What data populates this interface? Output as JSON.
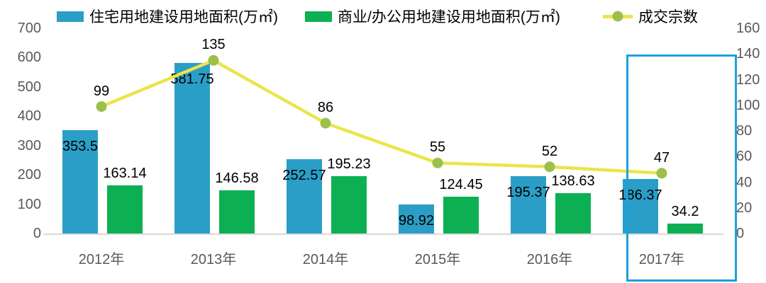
{
  "chart_data": {
    "type": "bar",
    "subtype": "combo-bar-line",
    "title": "",
    "categories": [
      "2012年",
      "2013年",
      "2014年",
      "2015年",
      "2016年",
      "2017年"
    ],
    "series": [
      {
        "name": "住宅用地建设用地面积(万㎡)",
        "type": "bar",
        "axis": "left",
        "color": "#2B9EC7",
        "values": [
          353.5,
          581.75,
          252.57,
          98.92,
          195.37,
          186.37
        ],
        "labels": [
          "353.5",
          "581.75",
          "252.57",
          "98.92",
          "195.37",
          "186.37"
        ]
      },
      {
        "name": "商业/办公用地建设用地面积(万㎡)",
        "type": "bar",
        "axis": "left",
        "color": "#0CB052",
        "values": [
          163.14,
          146.58,
          195.23,
          124.45,
          138.63,
          34.2
        ],
        "labels": [
          "163.14",
          "146.58",
          "195.23",
          "124.45",
          "138.63",
          "34.2"
        ]
      },
      {
        "name": "成交宗数",
        "type": "line",
        "axis": "right",
        "color": "#EAE54A",
        "marker_color": "#9DBF4B",
        "values": [
          99,
          135,
          86,
          55,
          52,
          47
        ],
        "labels": [
          "99",
          "135",
          "86",
          "55",
          "52",
          "47"
        ]
      }
    ],
    "left_axis": {
      "min": 0,
      "max": 700,
      "ticks": [
        700,
        600,
        500,
        400,
        300,
        200,
        100,
        0
      ]
    },
    "right_axis": {
      "min": 0,
      "max": 160,
      "ticks": [
        160,
        140,
        120,
        100,
        80,
        60,
        40,
        20,
        0
      ]
    },
    "highlight": {
      "category": "2017年",
      "color": "#1BA1E1"
    },
    "colors": {
      "axis_text": "#595959",
      "data_label": "#000000",
      "baseline": "#D9D9D9"
    },
    "legend_position": "top",
    "grid": false
  }
}
